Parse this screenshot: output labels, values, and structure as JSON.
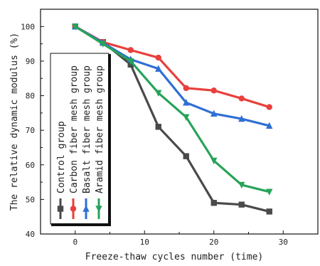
{
  "chart_data": {
    "type": "line",
    "title": "",
    "xlabel": "Freeze-thaw cycles number (time)",
    "ylabel": "The relative dynamic modulus (%)",
    "xlim": [
      -5,
      35
    ],
    "ylim": [
      40,
      105
    ],
    "xticks": [
      0,
      10,
      20,
      30
    ],
    "yticks": [
      40,
      50,
      60,
      70,
      80,
      90,
      100
    ],
    "x": [
      0,
      4,
      8,
      12,
      16,
      20,
      24,
      28
    ],
    "grid": false,
    "legend_placement": "bottom-left, rotated vertical",
    "series": [
      {
        "name": "Control group",
        "color": "#4a4a4a",
        "marker": "square",
        "values": [
          100,
          95.5,
          89,
          71,
          62.5,
          49,
          48.5,
          46.5
        ]
      },
      {
        "name": "Carbon fiber mesh group",
        "color": "#e8403c",
        "marker": "circle",
        "values": [
          100,
          95.5,
          93.2,
          91,
          82.2,
          81.5,
          79.2,
          76.7
        ]
      },
      {
        "name": "Basalt fiber mesh group",
        "color": "#2f6fd4",
        "marker": "triangle-up",
        "values": [
          100,
          95.3,
          90.5,
          87.8,
          78,
          74.8,
          73.3,
          71.3
        ]
      },
      {
        "name": "Aramid fiber mesh group",
        "color": "#27a35a",
        "marker": "triangle-down",
        "values": [
          100,
          95,
          90,
          80.8,
          73.8,
          61.2,
          54.2,
          52.2
        ]
      }
    ]
  }
}
